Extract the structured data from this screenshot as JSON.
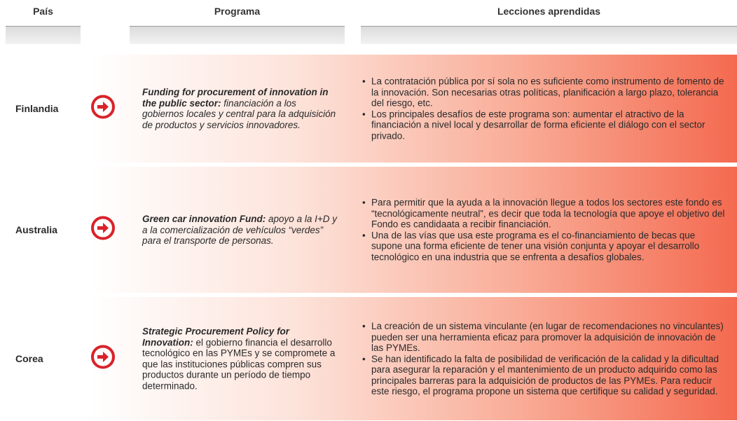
{
  "header": {
    "country": "País",
    "program": "Programa",
    "lessons": "Lecciones aprendidas"
  },
  "rows": [
    {
      "country": "Finlandia",
      "program_title": "Funding for procurement of innovation in the public sector:",
      "program_desc": "financiación a los gobiernos locales y central para la adquisición de productos y servicios innovadores.",
      "lessons": [
        "La contratación pública por sí sola no es suficiente como instrumento de fomento de la innovación. Son necesarias otras políticas, planificación a largo plazo, tolerancia del riesgo, etc.",
        "Los principales desafíos de este programa son: aumentar el atractivo de la financiación a nivel local y desarrollar de forma eficiente el diálogo con el sector privado."
      ]
    },
    {
      "country": "Australia",
      "program_title": "Green car innovation Fund:",
      "program_desc": "apoyo a la I+D y a la comercialización de vehículos “verdes” para el transporte de personas.",
      "lessons": [
        "Para permitir que la ayuda a la innovación llegue a todos los sectores este fondo es “tecnológicamente neutral”, es decir que toda la tecnología que apoye el objetivo del Fondo es candidaata a recibir financiación.",
        "Una de las vías que usa este programa es el co-financiamiento de becas que supone una forma eficiente de tener una visión conjunta y apoyar el desarrollo tecnológico en una industria que se enfrenta a desafíos globales."
      ]
    },
    {
      "country": "Corea",
      "program_title": "Strategic Procurement Policy for Innovation:",
      "program_desc": "el gobierno financia el desarrollo tecnológico en las PYMEs y se compromete a que las instituciones públicas compren sus productos durante un período de tiempo determinado.",
      "lessons": [
        "La creación de un sistema vinculante (en lugar de recomendaciones no vinculantes) pueden ser una herramienta eficaz para promover la adquisición de innovación de las PYMEs.",
        "Se han identificado la falta de posibilidad de verificación de la calidad y la dificultad para asegurar la reparación y el mantenimiento de un producto adquirido como las principales barreras para la adquisición de productos de las PYMEs. Para reducir este riesgo, el programa propone un sistema que certifique su calidad y seguridad."
      ]
    }
  ]
}
